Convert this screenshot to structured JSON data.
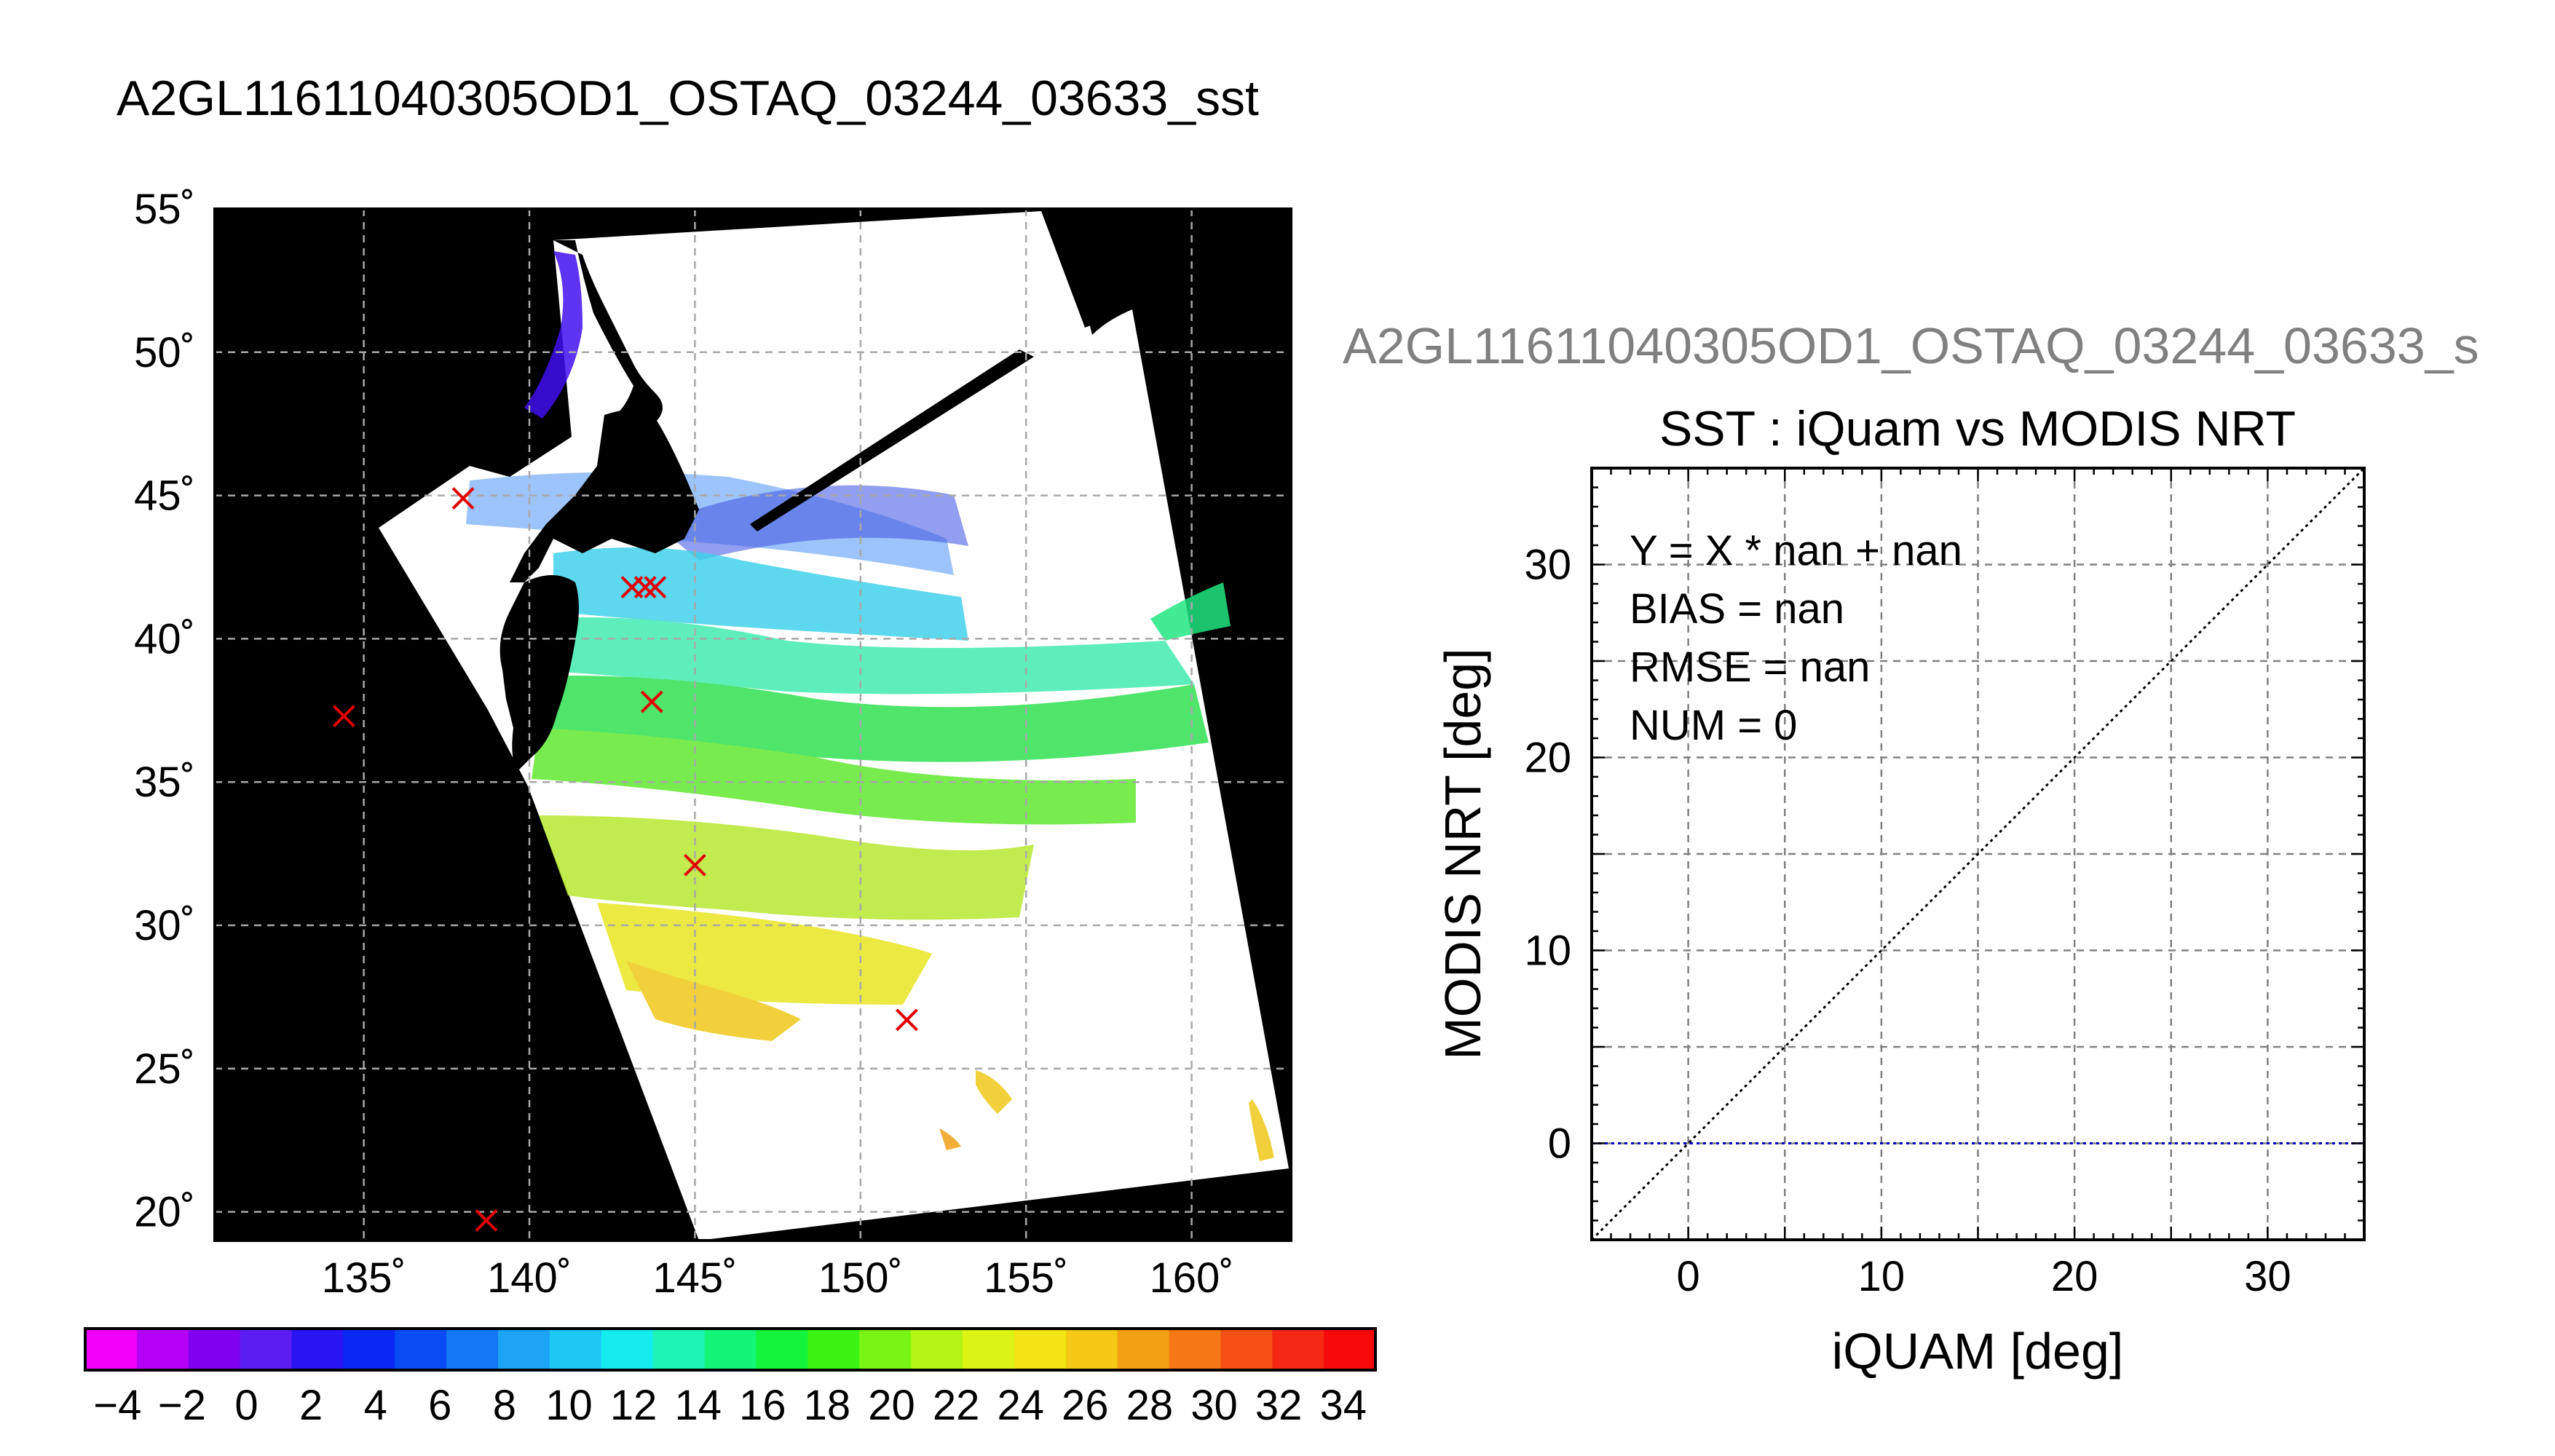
{
  "page_title": "A2GL11611040305OD1_OSTAQ_03244_03633_sst",
  "chart_data": [
    {
      "type": "map",
      "title": "A2GL11611040305OD1_OSTAQ_03244_03633_sst",
      "lon_range": [
        130.5,
        163
      ],
      "lat_range": [
        19,
        55
      ],
      "lon_ticks": [
        135,
        140,
        145,
        150,
        155,
        160
      ],
      "lat_ticks": [
        20,
        25,
        30,
        35,
        40,
        45,
        50,
        55
      ],
      "lon_tick_labels": [
        "135˚",
        "140˚",
        "145˚",
        "150˚",
        "155˚",
        "160˚"
      ],
      "lat_tick_labels": [
        "20˚",
        "25˚",
        "30˚",
        "35˚",
        "40˚",
        "45˚",
        "50˚",
        "55˚"
      ],
      "grid": true,
      "field": "sea surface temperature",
      "markers": {
        "symbol": "×",
        "color": "#e00000",
        "points": [
          {
            "lon": 138.0,
            "lat": 44.9
          },
          {
            "lon": 134.4,
            "lat": 37.3
          },
          {
            "lon": 143.1,
            "lat": 41.8
          },
          {
            "lon": 143.5,
            "lat": 41.8
          },
          {
            "lon": 143.8,
            "lat": 41.8
          },
          {
            "lon": 143.7,
            "lat": 37.8
          },
          {
            "lon": 145.0,
            "lat": 32.1
          },
          {
            "lon": 151.4,
            "lat": 26.7
          },
          {
            "lon": 138.7,
            "lat": 19.7
          }
        ]
      }
    },
    {
      "type": "colorbar",
      "range": [
        -5,
        35
      ],
      "step": 2,
      "tick_labels": [
        "−4",
        "−2",
        "0",
        "2",
        "4",
        "6",
        "8",
        "10",
        "12",
        "14",
        "16",
        "18",
        "20",
        "22",
        "24",
        "26",
        "28",
        "30",
        "32",
        "34"
      ],
      "tick_values": [
        -4,
        -2,
        0,
        2,
        4,
        6,
        8,
        10,
        12,
        14,
        16,
        18,
        20,
        22,
        24,
        26,
        28,
        30,
        32,
        34
      ],
      "colors": [
        "#f000f8",
        "#b400f4",
        "#8200f0",
        "#5a1ef2",
        "#2a14f4",
        "#0a28f4",
        "#0a4cf4",
        "#1478f4",
        "#1ea4f4",
        "#1ec8f4",
        "#14ecf0",
        "#1ef4b4",
        "#14f478",
        "#14f43c",
        "#3cf414",
        "#78f414",
        "#b4f414",
        "#dcf414",
        "#f4e414",
        "#f4c814",
        "#f4a014",
        "#f47814",
        "#f45014",
        "#f42814",
        "#f40a0a"
      ]
    },
    {
      "type": "scatter",
      "suptitle": "A2GL11611040305OD1_OSTAQ_03244_03633_s",
      "title": "SST : iQuam vs MODIS NRT",
      "xlabel": "iQUAM [deg]",
      "ylabel": "MODIS NRT [deg]",
      "xlim": [
        -5,
        35
      ],
      "ylim": [
        -5,
        35
      ],
      "x_ticks": [
        0,
        10,
        20,
        30
      ],
      "y_ticks": [
        0,
        10,
        20,
        30
      ],
      "x_tick_labels": [
        "0",
        "10",
        "20",
        "30"
      ],
      "y_tick_labels": [
        "0",
        "10",
        "20",
        "30"
      ],
      "grid": true,
      "stats": [
        "Y = X * nan + nan",
        "BIAS = nan",
        "RMSE = nan",
        "NUM = 0"
      ],
      "series": [
        {
          "style": "dotted",
          "color": "#000000",
          "points": [
            [
              -5,
              -5
            ],
            [
              35,
              35
            ]
          ]
        },
        {
          "style": "dotted",
          "color": "#0000c0",
          "points": [
            [
              -5,
              0
            ],
            [
              35,
              0
            ]
          ]
        }
      ]
    }
  ]
}
